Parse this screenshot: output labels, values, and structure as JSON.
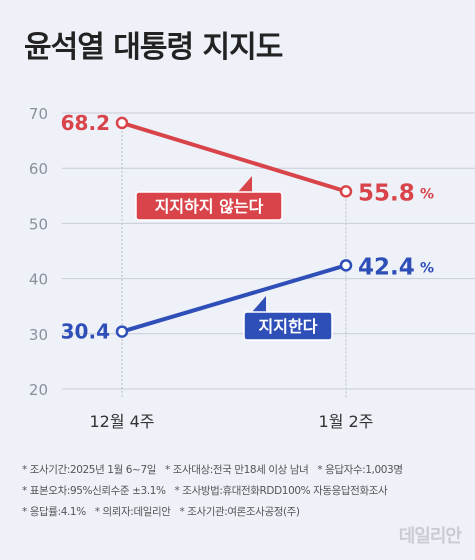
{
  "title": "윤석열 대통령 지지도",
  "chart_data": {
    "type": "line",
    "categories": [
      "12월 4주",
      "1월 2주"
    ],
    "ylim": [
      20,
      70
    ],
    "yticks": [
      20,
      30,
      40,
      50,
      60,
      70
    ],
    "series": [
      {
        "name": "지지하지 않는다",
        "values": [
          68.2,
          55.8
        ],
        "color": "#d9444a",
        "last_suffix": "%"
      },
      {
        "name": "지지한다",
        "values": [
          30.4,
          42.4
        ],
        "color": "#2f4fb8",
        "last_suffix": "%"
      }
    ]
  },
  "notes": [
    "* 조사기간:2025년 1월 6~7일",
    "* 조사대상:전국 만18세 이상 남녀",
    "* 응답자수:1,003명",
    "* 표본오차:95%신뢰수준 ±3.1%",
    "* 조사방법:휴대전화RDD100% 자동응답전화조사",
    "* 응답률:4.1%",
    "* 의뢰자:데일리안",
    "* 조사기관:여론조사공정(주)"
  ],
  "logo": "데일리안"
}
